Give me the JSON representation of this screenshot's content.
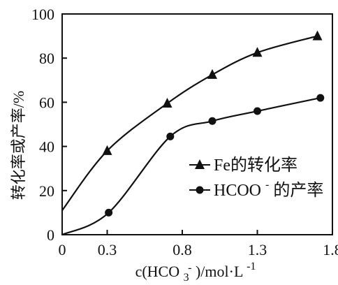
{
  "chart_data": {
    "type": "line",
    "title": "",
    "xlabel": {
      "prefix": "c(HCO",
      "sub": "3",
      "sup": "-",
      "suffix": ")/mol·L",
      "suffix_sup": "-1"
    },
    "ylabel": "转化率或产率/%",
    "xlim": [
      0,
      1.8
    ],
    "ylim": [
      0,
      100
    ],
    "xticks": [
      "0",
      "0.3",
      "0.8",
      "1.3",
      "1.8"
    ],
    "yticks": [
      "0",
      "20",
      "40",
      "60",
      "80",
      "100"
    ],
    "grid": false,
    "legend_position": "inside-right",
    "series": [
      {
        "name": "Fe的转化率",
        "marker": "triangle",
        "x": [
          0.3,
          0.7,
          1.0,
          1.3,
          1.7
        ],
        "y": [
          38,
          59.5,
          72.5,
          82.5,
          90
        ],
        "curve_start": [
          0,
          11
        ]
      },
      {
        "name_main": "HCOO",
        "name_sup": "-",
        "name_suffix": " 的产率",
        "marker": "circle",
        "x": [
          0.31,
          0.72,
          1.0,
          1.3,
          1.72
        ],
        "y": [
          10,
          44.5,
          51.5,
          56,
          62
        ],
        "curve_start": [
          0,
          0
        ]
      }
    ]
  }
}
